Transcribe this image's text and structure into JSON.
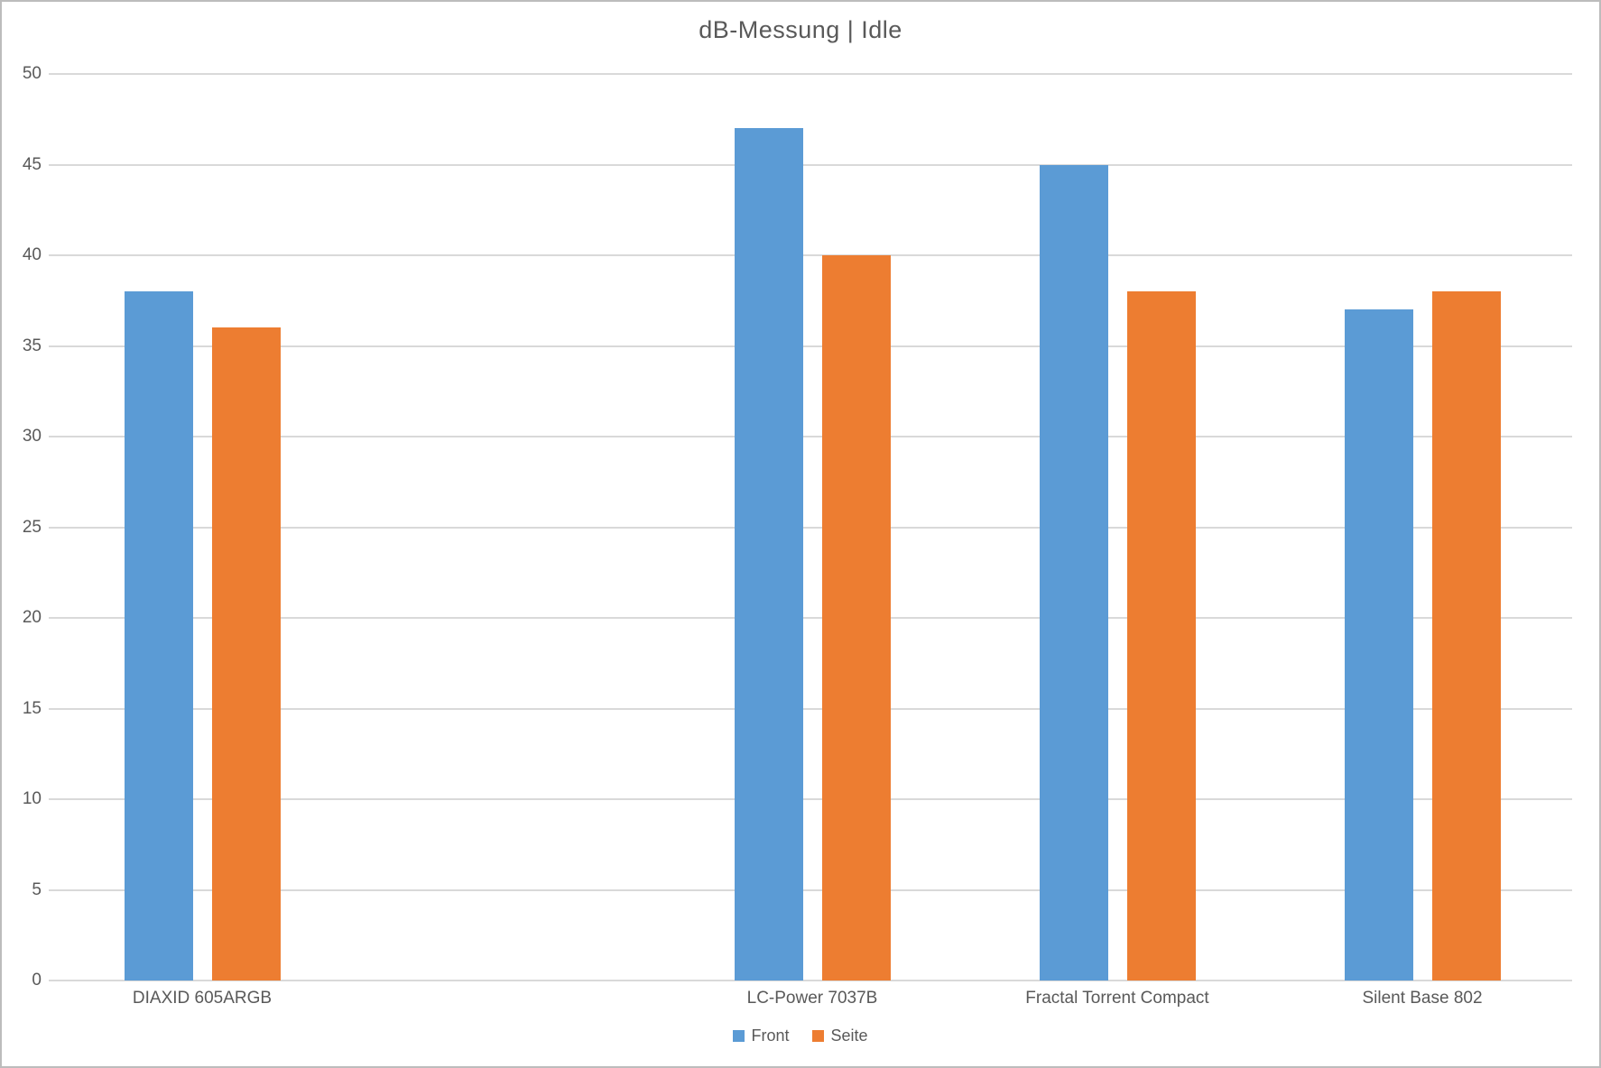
{
  "chart_data": {
    "type": "bar",
    "title": "dB-Messung | Idle",
    "categories": [
      "DIAXID 605ARGB",
      "",
      "LC-Power 7037B",
      "Fractal Torrent Compact",
      "Silent Base 802"
    ],
    "series": [
      {
        "name": "Front",
        "color": "#5B9BD5",
        "values": [
          38,
          null,
          47,
          45,
          37
        ]
      },
      {
        "name": "Seite",
        "color": "#ED7D31",
        "values": [
          36,
          null,
          40,
          38,
          38
        ]
      }
    ],
    "xlabel": "",
    "ylabel": "",
    "ylim": [
      0,
      50
    ],
    "yticks": [
      0,
      5,
      10,
      15,
      20,
      25,
      30,
      35,
      40,
      45,
      50
    ],
    "grid": true,
    "legend_position": "bottom",
    "gridline_color": "#D9D9D9",
    "text_color": "#595959"
  }
}
